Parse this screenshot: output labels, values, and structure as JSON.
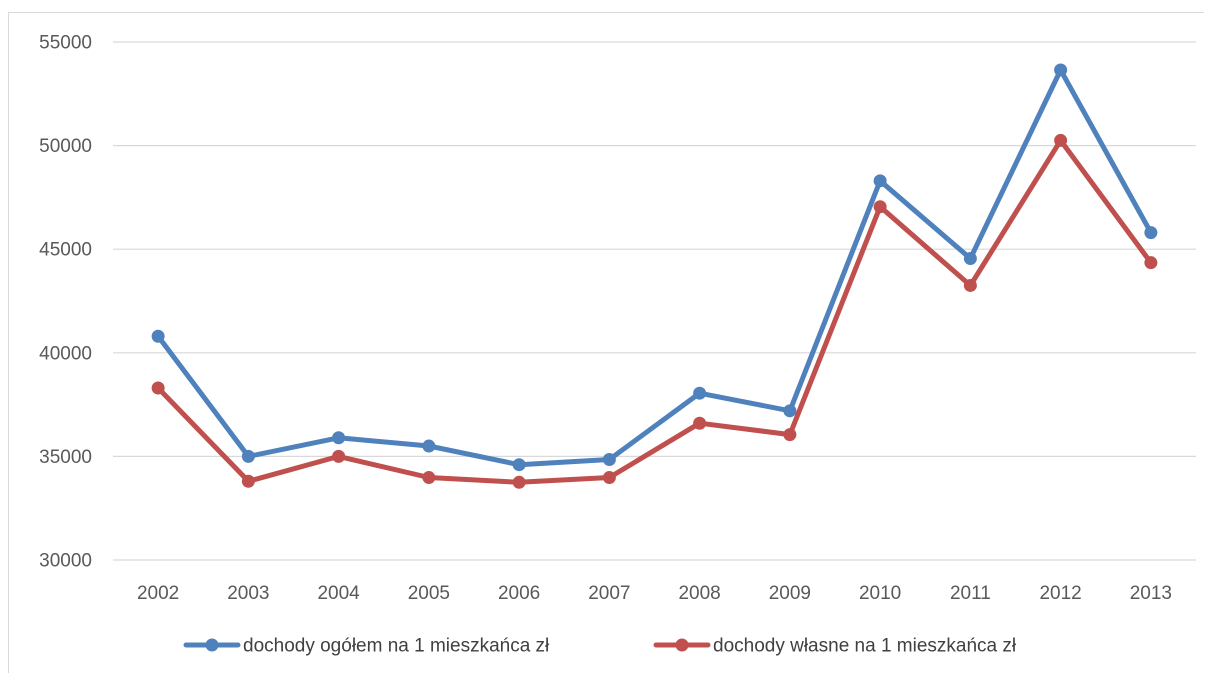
{
  "chart_data": {
    "type": "line",
    "categories": [
      "2002",
      "2003",
      "2004",
      "2005",
      "2006",
      "2007",
      "2008",
      "2009",
      "2010",
      "2011",
      "2012",
      "2013"
    ],
    "series": [
      {
        "name": "dochody ogółem na 1 mieszkańca zł",
        "color": "#4f81bd",
        "values": [
          40800,
          35000,
          35900,
          35500,
          34600,
          34850,
          38050,
          37200,
          48300,
          44550,
          53650,
          45800
        ]
      },
      {
        "name": "dochody własne na 1 mieszkańca zł",
        "color": "#c0504d",
        "values": [
          38300,
          33800,
          35000,
          33980,
          33750,
          33980,
          36600,
          36050,
          47050,
          43250,
          50250,
          44350
        ]
      }
    ],
    "y_ticks": [
      "30000",
      "35000",
      "40000",
      "45000",
      "50000",
      "55000"
    ],
    "ylim": [
      30000,
      55000
    ],
    "grid": "horizontal",
    "legend_position": "bottom"
  }
}
